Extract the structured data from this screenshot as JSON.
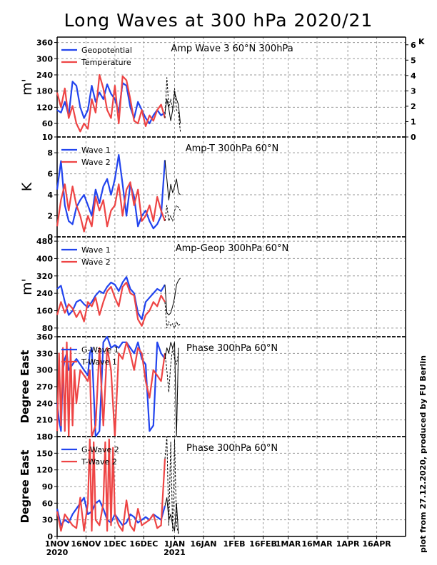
{
  "title": "Long Waves at 300 hPa 2020/21",
  "credit": "plot from 27.12.2020, produced by FU Berlin",
  "x_axis": {
    "ticks": [
      {
        "day": 0,
        "label": "1NOV",
        "sub": "2020"
      },
      {
        "day": 15,
        "label": "16NOV",
        "sub": ""
      },
      {
        "day": 30,
        "label": "1DEC",
        "sub": ""
      },
      {
        "day": 45,
        "label": "16DEC",
        "sub": ""
      },
      {
        "day": 61,
        "label": "1JAN",
        "sub": "2021"
      },
      {
        "day": 76,
        "label": "16JAN",
        "sub": ""
      },
      {
        "day": 92,
        "label": "1FEB",
        "sub": ""
      },
      {
        "day": 107,
        "label": "16FEB",
        "sub": ""
      },
      {
        "day": 120,
        "label": "1MAR",
        "sub": ""
      },
      {
        "day": 135,
        "label": "16MAR",
        "sub": ""
      },
      {
        "day": 151,
        "label": "1APR",
        "sub": ""
      },
      {
        "day": 166,
        "label": "16APR",
        "sub": ""
      }
    ],
    "range_days": [
      0,
      181
    ]
  },
  "chart_data": [
    {
      "type": "line",
      "title": "Amp Wave 3 60°N 300hPa",
      "ylabel": "m'",
      "ylim": [
        10,
        380
      ],
      "yticks": [
        10,
        60,
        120,
        180,
        240,
        300,
        360
      ],
      "right_axis": {
        "label": "K",
        "ylim": [
          0,
          6.5
        ],
        "ticks": [
          0,
          1,
          2,
          3,
          4,
          5,
          6
        ]
      },
      "legend": [
        {
          "name": "Geopotential",
          "color": "#2244ee"
        },
        {
          "name": "Temperature",
          "color": "#ee4444"
        }
      ],
      "series": [
        {
          "name": "Geopotential",
          "color": "#2244ee",
          "axis": "left",
          "x": [
            0,
            2,
            4,
            6,
            8,
            10,
            12,
            14,
            16,
            18,
            20,
            22,
            24,
            26,
            28,
            30,
            32,
            34,
            36,
            38,
            40,
            42,
            44,
            46,
            48,
            50,
            52,
            54,
            56
          ],
          "y": [
            110,
            100,
            140,
            90,
            215,
            200,
            120,
            80,
            110,
            200,
            140,
            175,
            150,
            205,
            170,
            150,
            100,
            210,
            200,
            120,
            80,
            140,
            110,
            80,
            60,
            90,
            110,
            90,
            100
          ]
        },
        {
          "name": "Temperature",
          "color": "#ee4444",
          "axis": "left",
          "x": [
            0,
            2,
            4,
            6,
            8,
            10,
            12,
            14,
            16,
            18,
            20,
            22,
            24,
            26,
            28,
            30,
            32,
            34,
            36,
            38,
            40,
            42,
            44,
            46,
            48,
            50,
            52,
            54,
            56
          ],
          "y": [
            175,
            120,
            190,
            80,
            125,
            60,
            30,
            60,
            40,
            150,
            100,
            240,
            190,
            110,
            80,
            200,
            60,
            235,
            220,
            150,
            70,
            60,
            110,
            50,
            90,
            70,
            110,
            130,
            80
          ]
        },
        {
          "name": "forecast-geopotential",
          "color": "#000000",
          "dash": false,
          "axis": "left",
          "x": [
            56,
            57,
            58,
            59,
            60,
            61,
            62,
            63,
            64
          ],
          "y": [
            100,
            150,
            115,
            70,
            110,
            175,
            150,
            130,
            60
          ]
        },
        {
          "name": "forecast-temperature",
          "color": "#000000",
          "dash": true,
          "axis": "left",
          "x": [
            56,
            57,
            58,
            59,
            60,
            61,
            62,
            63,
            64
          ],
          "y": [
            80,
            230,
            120,
            150,
            110,
            190,
            110,
            100,
            30
          ]
        }
      ]
    },
    {
      "type": "line",
      "title": "Amp-T 300hPa 60°N",
      "ylabel": "K",
      "ylim": [
        0,
        9.5
      ],
      "yticks": [
        0,
        2,
        4,
        6,
        8
      ],
      "legend": [
        {
          "name": "Wave 1",
          "color": "#2244ee"
        },
        {
          "name": "Wave 2",
          "color": "#ee4444"
        }
      ],
      "series": [
        {
          "name": "Wave 1",
          "color": "#2244ee",
          "x": [
            0,
            2,
            4,
            6,
            8,
            10,
            12,
            14,
            16,
            18,
            20,
            22,
            24,
            26,
            28,
            30,
            32,
            34,
            36,
            38,
            40,
            42,
            44,
            46,
            48,
            50,
            52,
            54,
            56
          ],
          "y": [
            4.5,
            7.2,
            3.0,
            1.5,
            1.2,
            2.8,
            3.5,
            4.0,
            3.0,
            2.0,
            4.5,
            3.2,
            4.8,
            5.5,
            4.0,
            5.5,
            7.8,
            5.0,
            2.0,
            5.0,
            3.8,
            1.0,
            2.0,
            2.5,
            1.5,
            0.8,
            1.2,
            2.0,
            7.3
          ]
        },
        {
          "name": "Wave 2",
          "color": "#ee4444",
          "x": [
            0,
            2,
            4,
            6,
            8,
            10,
            12,
            14,
            16,
            18,
            20,
            22,
            24,
            26,
            28,
            30,
            32,
            34,
            36,
            38,
            40,
            42,
            44,
            46,
            48,
            50,
            52,
            54,
            56
          ],
          "y": [
            1.0,
            3.5,
            5.0,
            2.5,
            4.8,
            3.0,
            2.0,
            0.5,
            2.0,
            1.0,
            3.8,
            2.5,
            3.5,
            1.0,
            2.5,
            3.0,
            5.0,
            2.0,
            4.5,
            5.2,
            3.0,
            4.5,
            1.5,
            2.0,
            3.0,
            1.5,
            3.8,
            2.5,
            1.5
          ]
        },
        {
          "name": "forecast-wave1",
          "color": "#000000",
          "dash": false,
          "x": [
            56,
            57,
            58,
            59,
            60,
            61,
            62,
            63,
            64
          ],
          "y": [
            7.3,
            5.5,
            3.5,
            5.0,
            4.2,
            4.8,
            5.5,
            4.2,
            4.0
          ]
        },
        {
          "name": "forecast-wave2",
          "color": "#000000",
          "dash": true,
          "x": [
            56,
            57,
            58,
            59,
            60,
            61,
            62,
            63,
            64
          ],
          "y": [
            1.5,
            3.0,
            1.5,
            2.0,
            1.5,
            2.5,
            3.0,
            2.8,
            2.5
          ]
        }
      ]
    },
    {
      "type": "line",
      "title": "Amp-Geop 300hPa 60°N",
      "ylabel": "m'",
      "ylim": [
        40,
        500
      ],
      "yticks": [
        80,
        160,
        240,
        320,
        400,
        480
      ],
      "legend": [
        {
          "name": "Wave 1",
          "color": "#2244ee"
        },
        {
          "name": "Wave 2",
          "color": "#ee4444"
        }
      ],
      "series": [
        {
          "name": "Wave 1",
          "color": "#2244ee",
          "x": [
            0,
            2,
            4,
            6,
            8,
            10,
            12,
            14,
            16,
            18,
            20,
            22,
            24,
            26,
            28,
            30,
            32,
            34,
            36,
            38,
            40,
            42,
            44,
            46,
            48,
            50,
            52,
            54,
            56
          ],
          "y": [
            260,
            275,
            200,
            140,
            160,
            200,
            210,
            190,
            175,
            200,
            230,
            250,
            240,
            270,
            290,
            280,
            250,
            290,
            315,
            260,
            240,
            150,
            120,
            200,
            220,
            240,
            260,
            250,
            280
          ]
        },
        {
          "name": "Wave 2",
          "color": "#ee4444",
          "x": [
            0,
            2,
            4,
            6,
            8,
            10,
            12,
            14,
            16,
            18,
            20,
            22,
            24,
            26,
            28,
            30,
            32,
            34,
            36,
            38,
            40,
            42,
            44,
            46,
            48,
            50,
            52,
            54,
            56
          ],
          "y": [
            140,
            200,
            150,
            190,
            170,
            130,
            160,
            110,
            200,
            180,
            220,
            140,
            200,
            250,
            270,
            220,
            180,
            270,
            290,
            240,
            230,
            120,
            90,
            140,
            160,
            200,
            180,
            230,
            200
          ]
        },
        {
          "name": "forecast-wave1",
          "color": "#000000",
          "dash": false,
          "x": [
            56,
            57,
            58,
            59,
            60,
            61,
            62,
            63,
            64
          ],
          "y": [
            280,
            150,
            140,
            150,
            180,
            220,
            280,
            300,
            310
          ]
        },
        {
          "name": "forecast-wave2",
          "color": "#000000",
          "dash": true,
          "x": [
            56,
            57,
            58,
            59,
            60,
            61,
            62,
            63,
            64
          ],
          "y": [
            200,
            80,
            110,
            90,
            100,
            80,
            110,
            90,
            100
          ]
        }
      ]
    },
    {
      "type": "line",
      "title": "Phase 300hPa 60°N",
      "ylabel": "Degree East",
      "ylim": [
        180,
        360
      ],
      "yticks": [
        180,
        210,
        240,
        270,
        300,
        330,
        360
      ],
      "legend": [
        {
          "name": "G-Wave 1",
          "color": "#2244ee"
        },
        {
          "name": "T-Wave 1",
          "color": "#ee4444"
        }
      ],
      "series": [
        {
          "name": "G-Wave 1",
          "color": "#2244ee",
          "x": [
            0,
            1,
            2,
            3,
            4,
            5,
            6,
            8,
            10,
            12,
            14,
            16,
            17,
            18,
            20,
            22,
            24,
            26,
            28,
            30,
            32,
            34,
            36,
            38,
            40,
            42,
            44,
            46,
            48,
            50,
            52,
            54,
            56
          ],
          "y": [
            240,
            210,
            190,
            300,
            320,
            330,
            300,
            310,
            320,
            310,
            300,
            290,
            330,
            340,
            180,
            190,
            350,
            360,
            340,
            345,
            340,
            350,
            350,
            340,
            330,
            350,
            320,
            310,
            190,
            200,
            350,
            330,
            320
          ]
        },
        {
          "name": "T-Wave 1",
          "color": "#ee4444",
          "x": [
            0,
            1,
            2,
            3,
            4,
            5,
            6,
            7,
            8,
            9,
            10,
            12,
            14,
            16,
            17,
            18,
            20,
            22,
            24,
            26,
            28,
            30,
            32,
            34,
            36,
            38,
            40,
            42,
            44,
            46,
            48,
            50,
            52,
            54,
            56
          ],
          "y": [
            190,
            330,
            200,
            340,
            190,
            350,
            180,
            340,
            200,
            300,
            240,
            300,
            290,
            280,
            300,
            180,
            200,
            340,
            200,
            340,
            300,
            180,
            330,
            320,
            350,
            330,
            300,
            340,
            330,
            280,
            250,
            300,
            290,
            280,
            330
          ]
        },
        {
          "name": "forecast-gwave1",
          "color": "#000000",
          "dash": false,
          "x": [
            56,
            57,
            58,
            59,
            60,
            61,
            62,
            63
          ],
          "y": [
            320,
            340,
            330,
            350,
            340,
            350,
            180,
            340
          ]
        },
        {
          "name": "forecast-twave1",
          "color": "#000000",
          "dash": true,
          "x": [
            56,
            57,
            58,
            59,
            60,
            61,
            62,
            63
          ],
          "y": [
            330,
            300,
            260,
            310,
            340,
            320,
            310,
            330
          ]
        }
      ]
    },
    {
      "type": "line",
      "title": "Phase 300hPa 60°N",
      "ylabel": "Degree East",
      "ylim": [
        0,
        180
      ],
      "yticks": [
        0,
        30,
        60,
        90,
        120,
        150,
        180
      ],
      "legend": [
        {
          "name": "G-Wave 2",
          "color": "#2244ee"
        },
        {
          "name": "T-Wave 2",
          "color": "#ee4444"
        }
      ],
      "series": [
        {
          "name": "G-Wave 2",
          "color": "#2244ee",
          "x": [
            0,
            2,
            4,
            6,
            8,
            10,
            12,
            14,
            16,
            18,
            20,
            22,
            24,
            26,
            28,
            30,
            32,
            34,
            36,
            38,
            40,
            42,
            44,
            46,
            48,
            50,
            52,
            54,
            56
          ],
          "y": [
            50,
            20,
            30,
            25,
            40,
            50,
            60,
            70,
            40,
            45,
            60,
            65,
            50,
            30,
            25,
            40,
            30,
            20,
            25,
            40,
            35,
            25,
            30,
            35,
            30,
            40,
            35,
            30,
            55
          ]
        },
        {
          "name": "T-Wave 2",
          "color": "#ee4444",
          "x": [
            0,
            2,
            4,
            6,
            8,
            10,
            12,
            14,
            16,
            17,
            18,
            19,
            20,
            22,
            24,
            25,
            26,
            27,
            28,
            29,
            30,
            32,
            34,
            36,
            38,
            40,
            42,
            44,
            46,
            48,
            50,
            52,
            54,
            56
          ],
          "y": [
            45,
            10,
            40,
            30,
            20,
            15,
            70,
            10,
            60,
            175,
            10,
            170,
            30,
            20,
            60,
            170,
            10,
            175,
            20,
            160,
            40,
            20,
            10,
            65,
            20,
            10,
            50,
            20,
            25,
            30,
            40,
            15,
            20,
            140
          ]
        },
        {
          "name": "forecast-gwave2",
          "color": "#000000",
          "dash": false,
          "x": [
            56,
            57,
            58,
            59,
            60,
            61,
            62,
            63
          ],
          "y": [
            55,
            70,
            30,
            40,
            20,
            10,
            60,
            5
          ]
        },
        {
          "name": "forecast-twave2",
          "color": "#000000",
          "dash": true,
          "x": [
            56,
            57,
            58,
            59,
            60,
            61,
            62,
            63
          ],
          "y": [
            140,
            180,
            20,
            170,
            10,
            175,
            20,
            5
          ]
        }
      ]
    }
  ]
}
